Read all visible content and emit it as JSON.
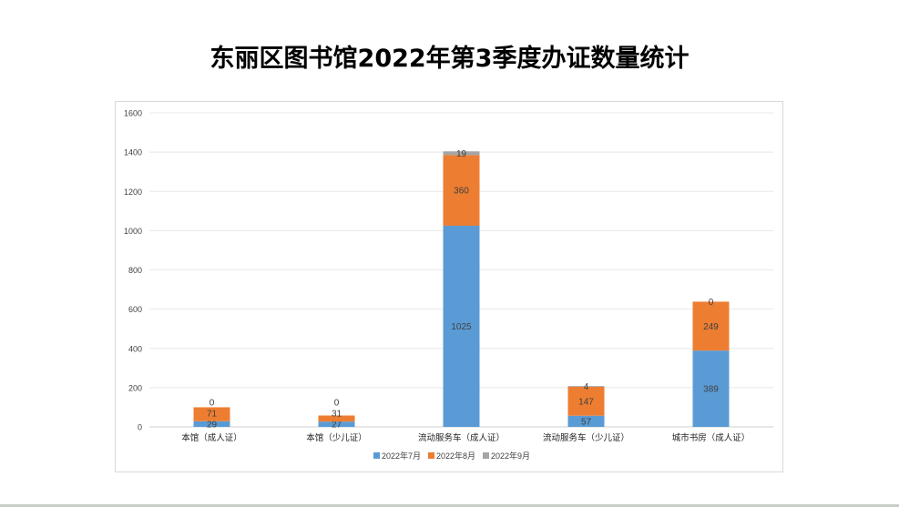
{
  "title": "东丽区图书馆2022年第3季度办证数量统计",
  "chart_data": {
    "type": "bar",
    "stacked": true,
    "title": "东丽区图书馆2022年第3季度办证数量统计",
    "categories": [
      "本馆（成人证）",
      "本馆（少儿证）",
      "流动服务车（成人证）",
      "流动服务车（少儿证）",
      "城市书房（成人证）"
    ],
    "series": [
      {
        "name": "2022年7月",
        "color": "#5b9bd5",
        "values": [
          29,
          27,
          1025,
          57,
          389
        ]
      },
      {
        "name": "2022年8月",
        "color": "#ed7d31",
        "values": [
          71,
          31,
          360,
          147,
          249
        ]
      },
      {
        "name": "2022年9月",
        "color": "#a5a5a5",
        "values": [
          0,
          0,
          19,
          4,
          0
        ]
      }
    ],
    "ylim": [
      0,
      1600
    ],
    "yticks": [
      0,
      200,
      400,
      600,
      800,
      1000,
      1200,
      1400,
      1600
    ],
    "grid": true,
    "legend": "bottom",
    "xlabel": "",
    "ylabel": ""
  }
}
